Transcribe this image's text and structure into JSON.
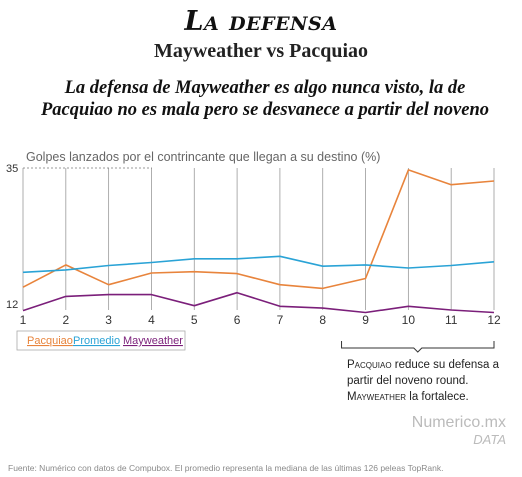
{
  "title": "La defensa",
  "subtitle": "Mayweather vs Pacquiao",
  "headline": "La defensa de Mayweather es algo nunca visto, la de Pacquiao no es mala pero se desvanece a partir del noveno",
  "annotation": {
    "name1": "Pacquiao",
    "text1": " reduce su defensa a partir del noveno round. ",
    "name2": "Mayweather",
    "text2": " la fortalece."
  },
  "brand": {
    "name": "Numerico.mx",
    "sub": "DATA"
  },
  "source": "Fuente: Numérico con datos de Compubox. El promedio representa la mediana de las últimas 126 peleas TopRank.",
  "colors": {
    "Pacquiao": "#e8843c",
    "Promedio": "#2aa3d6",
    "Mayweather": "#7b1f7a",
    "grid": "#9a9a9a"
  },
  "chart_data": {
    "type": "line",
    "ylabel": "Golpes lanzados por el contrincante que llegan a su destino (%)",
    "x": [
      1,
      2,
      3,
      4,
      5,
      6,
      7,
      8,
      9,
      10,
      11,
      12
    ],
    "ylim": [
      12,
      35
    ],
    "yticks": [
      "12",
      "35"
    ],
    "grid": true,
    "legend_position": "bottom-left",
    "series": [
      {
        "name": "Pacquiao",
        "values": [
          15.7,
          19.3,
          16.1,
          18.0,
          18.2,
          17.9,
          16.1,
          15.5,
          17.1,
          34.7,
          32.3,
          32.9
        ]
      },
      {
        "name": "Promedio",
        "values": [
          18.1,
          18.5,
          19.2,
          19.7,
          20.3,
          20.3,
          20.7,
          19.1,
          19.3,
          18.8,
          19.2,
          19.8
        ]
      },
      {
        "name": "Mayweather",
        "values": [
          11.9,
          14.2,
          14.5,
          14.5,
          12.7,
          14.8,
          12.6,
          12.3,
          11.6,
          12.6,
          12.0,
          11.6
        ]
      }
    ]
  }
}
